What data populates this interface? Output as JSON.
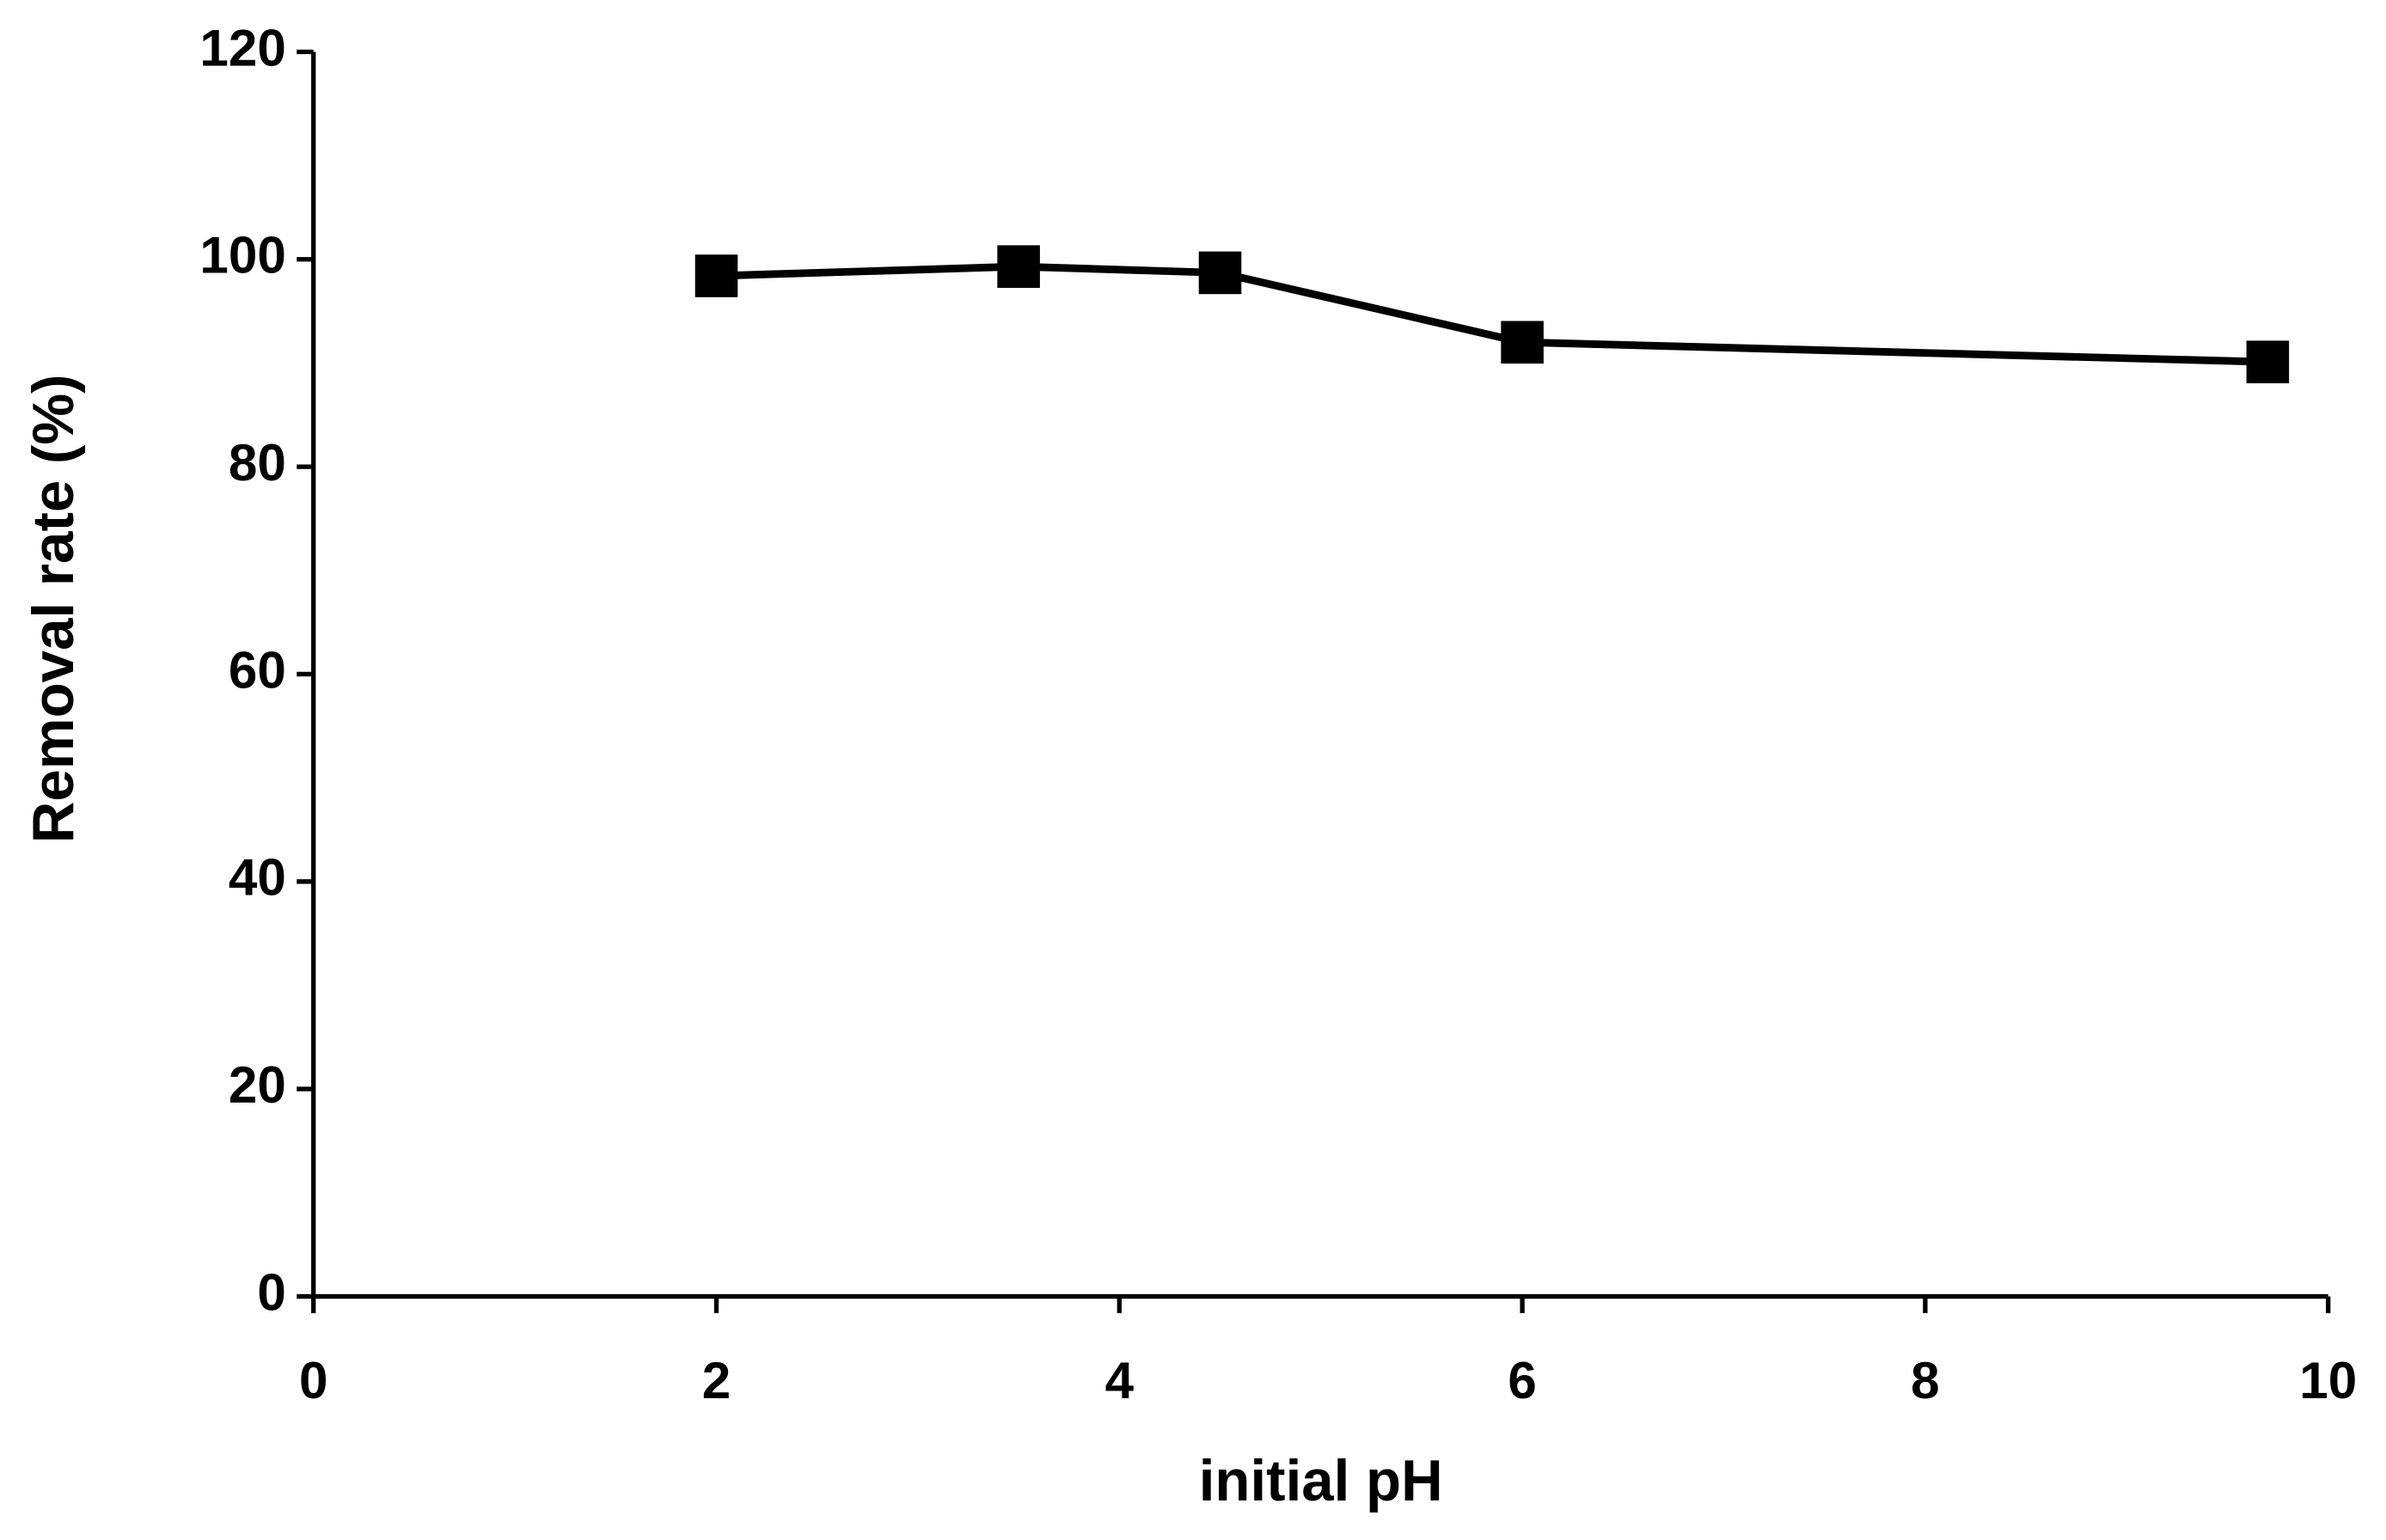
{
  "chart_data": {
    "type": "line",
    "x_label": "initial pH",
    "y_label": "Removal rate (%)",
    "x": [
      2,
      3.5,
      4.5,
      6,
      9.7
    ],
    "series": [
      {
        "name": "Removal rate",
        "color": "#000000",
        "values": [
          98.4,
          99.3,
          98.7,
          92.0,
          90.1
        ]
      }
    ],
    "xlim": [
      0,
      10
    ],
    "xticks": [
      0,
      2,
      4,
      6,
      8,
      10
    ],
    "ylim": [
      0,
      120
    ],
    "yticks": [
      0,
      20,
      40,
      60,
      80,
      100,
      120
    ],
    "grid": false,
    "marker": "square"
  }
}
